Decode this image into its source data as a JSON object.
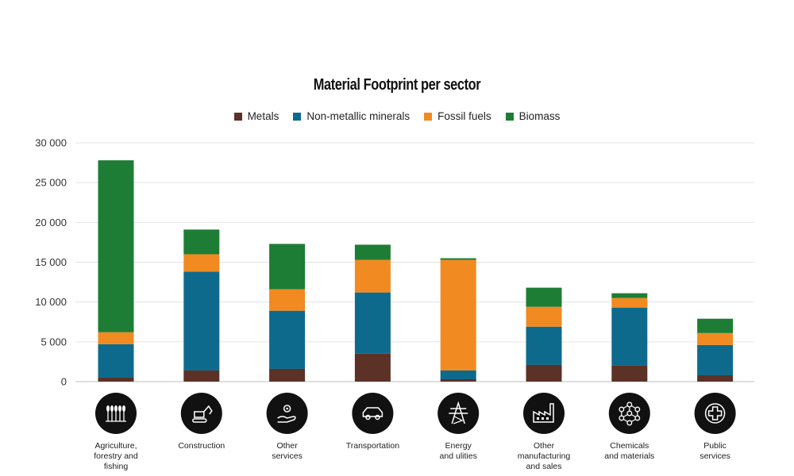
{
  "chart_data": {
    "type": "bar",
    "stacked": true,
    "title": "Material Footprint per sector",
    "xlabel": "",
    "ylabel": "",
    "ylim": [
      0,
      30000
    ],
    "yticks": [
      0,
      5000,
      10000,
      15000,
      20000,
      25000,
      30000
    ],
    "ytick_labels": [
      "0",
      "5 000",
      "10 000",
      "15 000",
      "20 000",
      "25 000",
      "30 000"
    ],
    "grid": true,
    "legend_position": "top-center",
    "categories": [
      "Agriculture, forestry and fishing",
      "Construction",
      "Other services",
      "Transportation",
      "Energy and ulities",
      "Other manufacturing and sales",
      "Chemicals and materials",
      "Public services"
    ],
    "category_label_lines": [
      [
        "Agriculture,",
        "forestry and",
        "fishing"
      ],
      [
        "Construction"
      ],
      [
        "Other",
        "services"
      ],
      [
        "Transportation"
      ],
      [
        "Energy",
        "and ulities"
      ],
      [
        "Other",
        "manufacturing",
        "and sales"
      ],
      [
        "Chemicals",
        "and materials"
      ],
      [
        "Public",
        "services"
      ]
    ],
    "category_icons": [
      "wheat-icon",
      "excavator-icon",
      "hand-gear-icon",
      "car-icon",
      "power-pylon-icon",
      "factory-icon",
      "molecule-icon",
      "medical-cross-icon"
    ],
    "series": [
      {
        "name": "Metals",
        "color": "#5c3126",
        "values": [
          500,
          1400,
          1600,
          3500,
          300,
          2100,
          2000,
          800
        ]
      },
      {
        "name": "Non-metallic minerals",
        "color": "#0e6a8c",
        "values": [
          4200,
          12400,
          7300,
          7700,
          1100,
          4800,
          7300,
          3800
        ]
      },
      {
        "name": "Fossil fuels",
        "color": "#f18a21",
        "values": [
          1500,
          2200,
          2700,
          4100,
          13900,
          2500,
          1200,
          1500
        ]
      },
      {
        "name": "Biomass",
        "color": "#1e7d35",
        "values": [
          21600,
          3100,
          5700,
          1900,
          200,
          2400,
          600,
          1800
        ]
      }
    ]
  }
}
